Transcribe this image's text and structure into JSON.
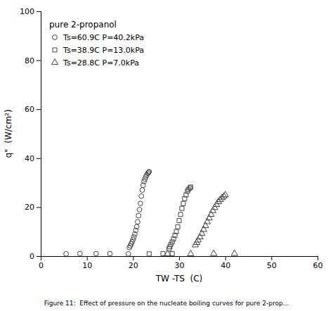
{
  "chart_data": {
    "type": "scatter",
    "title": "pure 2-propanol",
    "xlabel": "TW -TS  (C)",
    "ylabel": "q\"  (W/cm²)",
    "caption": "Figure 11:  Effect of pressure on the nucleate boiling curves for pure 2-prop...",
    "xlim": [
      0,
      60
    ],
    "ylim": [
      0,
      100
    ],
    "xticks": [
      0,
      10,
      20,
      30,
      40,
      50,
      60
    ],
    "yticks": [
      0,
      20,
      40,
      60,
      80,
      100
    ],
    "legend": "upper left",
    "color": "#444444",
    "series": [
      {
        "name": "Ts=60.9C P=40.2kPa",
        "marker": "circle",
        "x": [
          5.5,
          8.5,
          12.0,
          15.0,
          19.0,
          19.2,
          19.4,
          19.6,
          19.8,
          20.0,
          20.2,
          20.4,
          20.6,
          20.8,
          21.0,
          21.2,
          21.4,
          21.6,
          21.8,
          22.0,
          22.2,
          22.4,
          22.6,
          22.8,
          23.0,
          23.2,
          23.4,
          23.5
        ],
        "values": [
          0.9,
          1.0,
          1.0,
          1.0,
          0.9,
          3.5,
          4.2,
          5.0,
          5.8,
          6.8,
          7.8,
          9.0,
          10.5,
          12.0,
          14.0,
          16.5,
          19.0,
          21.5,
          24.5,
          27.0,
          29.0,
          30.5,
          31.5,
          32.5,
          33.2,
          33.8,
          34.2,
          34.5
        ]
      },
      {
        "name": "Ts=38.9C P=13.0kPa",
        "marker": "square",
        "x": [
          23.5,
          26.5,
          28.5,
          27.8,
          28.0,
          28.2,
          28.5,
          28.8,
          29.1,
          29.4,
          29.7,
          30.0,
          30.3,
          30.6,
          30.9,
          31.2,
          31.5,
          31.8,
          32.0,
          32.3,
          32.5
        ],
        "values": [
          0.9,
          1.0,
          1.0,
          3.0,
          3.8,
          4.8,
          5.8,
          7.0,
          8.5,
          10.0,
          12.0,
          14.5,
          17.0,
          19.5,
          21.5,
          23.5,
          25.0,
          26.5,
          27.2,
          27.8,
          28.2
        ]
      },
      {
        "name": "Ts=28.8C P=7.0kPa",
        "marker": "triangle",
        "x": [
          27.5,
          32.5,
          37.5,
          42.0,
          33.5,
          33.8,
          34.1,
          34.5,
          34.9,
          35.3,
          35.7,
          36.1,
          36.5,
          36.9,
          37.3,
          37.7,
          38.1,
          38.5,
          38.9,
          39.3,
          39.7,
          40.0
        ],
        "values": [
          0.9,
          0.9,
          1.0,
          1.0,
          4.5,
          5.5,
          6.5,
          7.8,
          9.2,
          10.8,
          12.4,
          14.0,
          15.5,
          17.0,
          18.5,
          19.8,
          21.0,
          22.2,
          23.0,
          23.8,
          24.4,
          25.0
        ]
      }
    ]
  }
}
